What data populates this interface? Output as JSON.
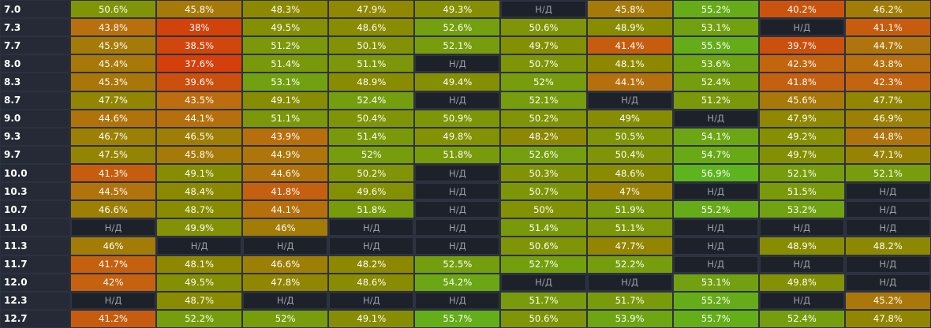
{
  "na_label": "Н/Д",
  "colors": {
    "scale_red": "#d63a0a",
    "scale_orange": "#c06a10",
    "scale_olive": "#8a8a00",
    "scale_green": "#5cb51e",
    "na_background": "#1d2129",
    "row_header_background": "#252a36"
  },
  "rows": [
    {
      "label": "7.0",
      "cells": [
        "50.6%",
        "45.8%",
        "48.3%",
        "47.9%",
        "49.3%",
        null,
        "45.8%",
        "55.2%",
        "40.2%",
        "46.2%"
      ]
    },
    {
      "label": "7.3",
      "cells": [
        "43.8%",
        "38%",
        "49.5%",
        "48.6%",
        "52.6%",
        "50.6%",
        "48.9%",
        "53.1%",
        null,
        "41.1%"
      ]
    },
    {
      "label": "7.7",
      "cells": [
        "45.9%",
        "38.5%",
        "51.2%",
        "50.1%",
        "52.1%",
        "49.7%",
        "41.4%",
        "55.5%",
        "39.7%",
        "44.7%"
      ]
    },
    {
      "label": "8.0",
      "cells": [
        "45.4%",
        "37.6%",
        "51.4%",
        "51.1%",
        null,
        "50.7%",
        "48.1%",
        "53.6%",
        "42.3%",
        "43.8%"
      ]
    },
    {
      "label": "8.3",
      "cells": [
        "45.3%",
        "39.6%",
        "53.1%",
        "48.9%",
        "49.4%",
        "52%",
        "44.1%",
        "52.4%",
        "41.8%",
        "42.3%"
      ]
    },
    {
      "label": "8.7",
      "cells": [
        "47.7%",
        "43.5%",
        "49.1%",
        "52.4%",
        null,
        "52.1%",
        null,
        "51.2%",
        "45.6%",
        "47.7%"
      ]
    },
    {
      "label": "9.0",
      "cells": [
        "44.6%",
        "44.1%",
        "51.1%",
        "50.4%",
        "50.9%",
        "50.2%",
        "49%",
        null,
        "47.9%",
        "46.9%"
      ]
    },
    {
      "label": "9.3",
      "cells": [
        "46.7%",
        "46.5%",
        "43.9%",
        "51.4%",
        "49.8%",
        "48.2%",
        "50.5%",
        "54.1%",
        "49.2%",
        "44.8%"
      ]
    },
    {
      "label": "9.7",
      "cells": [
        "47.5%",
        "45.8%",
        "44.9%",
        "52%",
        "51.8%",
        "52.6%",
        "50.4%",
        "54.7%",
        "49.7%",
        "47.1%"
      ]
    },
    {
      "label": "10.0",
      "cells": [
        "41.3%",
        "49.1%",
        "44.6%",
        "50.2%",
        null,
        "50.3%",
        "48.6%",
        "56.9%",
        "52.1%",
        "52.1%"
      ]
    },
    {
      "label": "10.3",
      "cells": [
        "44.5%",
        "48.4%",
        "41.8%",
        "49.6%",
        null,
        "50.7%",
        "47%",
        null,
        "51.5%",
        null
      ]
    },
    {
      "label": "10.7",
      "cells": [
        "46.6%",
        "48.7%",
        "44.1%",
        "51.8%",
        null,
        "50%",
        "51.9%",
        "55.2%",
        "53.2%",
        null
      ]
    },
    {
      "label": "11.0",
      "cells": [
        null,
        "49.9%",
        "46%",
        null,
        null,
        "51.4%",
        "51.1%",
        null,
        null,
        null
      ]
    },
    {
      "label": "11.3",
      "cells": [
        "46%",
        null,
        null,
        null,
        null,
        "50.6%",
        "47.7%",
        null,
        "48.9%",
        "48.2%"
      ]
    },
    {
      "label": "11.7",
      "cells": [
        "41.7%",
        "48.1%",
        "46.6%",
        "48.2%",
        "52.5%",
        "52.7%",
        "52.2%",
        null,
        null,
        null
      ]
    },
    {
      "label": "12.0",
      "cells": [
        "42%",
        "49.5%",
        "47.8%",
        "48.6%",
        "54.2%",
        null,
        null,
        "53.1%",
        "49.8%",
        null
      ]
    },
    {
      "label": "12.3",
      "cells": [
        null,
        "48.7%",
        null,
        null,
        null,
        "51.7%",
        "51.7%",
        "55.2%",
        null,
        "45.2%"
      ]
    },
    {
      "label": "12.7",
      "cells": [
        "41.2%",
        "52.2%",
        "52%",
        "49.1%",
        "55.7%",
        "50.6%",
        "53.9%",
        "55.7%",
        "52.4%",
        "47.8%"
      ]
    }
  ]
}
